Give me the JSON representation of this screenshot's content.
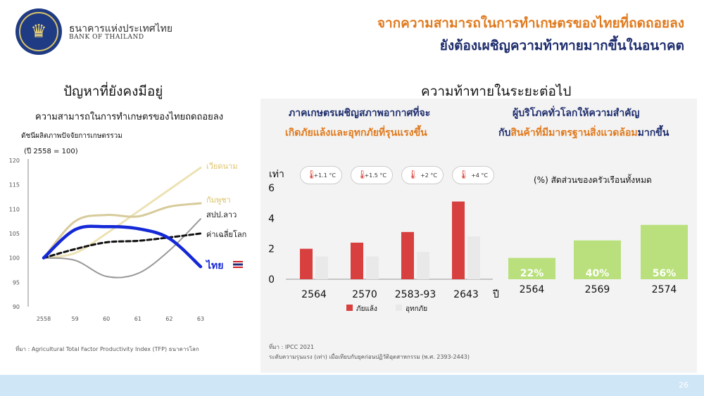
{
  "header": {
    "bank_name_th": "ธนาคารแห่งประเทศไทย",
    "bank_name_en": "BANK OF THAILAND",
    "title_line1": "จากความสามารถในการทำเกษตรของไทยที่ถดถอยลง",
    "title_line2": "ยังต้องเผชิญความท้าทายมากขึ้นในอนาคต",
    "logo_icon": "bank-of-thailand-seal-icon"
  },
  "left_section": {
    "heading": "ปัญหาที่ยังคงมีอยู่",
    "subheading": "ความสามารถในการทำเกษตรของไทยถดถอยลง",
    "source": "ที่มา : Agricultural Total Factor Productivity Index (TFP) ธนาคารโลก"
  },
  "right_section": {
    "heading": "ความท้าทายในระยะต่อไป",
    "panel1_line1": "ภาคเกษตรเผชิญสภาพอากาศที่จะ",
    "panel1_line2": "เกิดภัยแล้งและอุทกภัยที่รุนแรงขึ้น",
    "panel2_line1": "ผู้บริโภคทั่วโลกให้ความสำคัญ",
    "panel2_line2_pre": "กับ",
    "panel2_line2_accent": "สินค้าที่มีมาตรฐานสิ่งแวดล้อม",
    "panel2_line2_post": "มากขึ้น",
    "temp_badges": [
      "+1.1 °C",
      "+1.5 °C",
      "+2 °C",
      "+4 °C"
    ],
    "temp_icon": "thermometer-up-icon",
    "source_line1": "ที่มา : IPCC 2021",
    "source_line2": "ระดับความรุนแรง (เท่า) เมื่อเทียบกับยุคก่อนปฏิวัติอุตสาหกรรม (พ.ศ. 2393-2443)"
  },
  "page_number": "26",
  "colors": {
    "orange": "#e07a1e",
    "navy": "#1f2e6e",
    "thai_line": "#1428d6",
    "vietnam_line": "#ece2b4",
    "cambodia_line": "#d7cb9b",
    "laos_line": "#999999",
    "world_line": "#111111",
    "drought_bar": "#d84040",
    "flood_bar": "#e9e9e9",
    "green_bar": "#b9e07c"
  },
  "chart_data": [
    {
      "type": "line",
      "title": "ดัชนีผลิตภาพปัจจัยการเกษตรรวม",
      "subtitle": "(ปี 2558 = 100)",
      "x": [
        "2558",
        "59",
        "60",
        "61",
        "62",
        "63"
      ],
      "ylim": [
        90,
        120
      ],
      "yticks": [
        90,
        95,
        100,
        105,
        110,
        115,
        120
      ],
      "grid": false,
      "series": [
        {
          "name": "เวียดนาม",
          "values": [
            100,
            101,
            105,
            109.5,
            114,
            118.5
          ]
        },
        {
          "name": "กัมพูชา",
          "values": [
            100,
            107.5,
            108.8,
            108.5,
            110.5,
            111.2
          ]
        },
        {
          "name": "สปป.ลาว",
          "values": [
            100,
            99.5,
            96.2,
            96.8,
            101.5,
            108
          ]
        },
        {
          "name": "ค่าเฉลี่ยโลก",
          "values": [
            100,
            101.8,
            103.2,
            103.5,
            104.2,
            105
          ]
        },
        {
          "name": "ไทย",
          "values": [
            100,
            105.8,
            106.4,
            106,
            104,
            98.2
          ]
        }
      ]
    },
    {
      "type": "bar",
      "ylabel": "เท่า",
      "xlabel": "ปี",
      "categories": [
        "2564",
        "2570",
        "2583-93",
        "2643"
      ],
      "ylim": [
        0,
        6
      ],
      "yticks": [
        0,
        2,
        4,
        6
      ],
      "legend": "bottom",
      "series": [
        {
          "name": "ภัยแล้ง",
          "values": [
            2.0,
            2.4,
            3.1,
            5.1
          ]
        },
        {
          "name": "อุทกภัย",
          "values": [
            1.5,
            1.5,
            1.8,
            2.8
          ]
        }
      ]
    },
    {
      "type": "bar",
      "title": "(%) สัดส่วนของครัวเรือนทั้งหมด",
      "categories": [
        "2564",
        "2569",
        "2574"
      ],
      "values": [
        22,
        40,
        56
      ],
      "data_labels": [
        "22%",
        "40%",
        "56%"
      ]
    }
  ]
}
